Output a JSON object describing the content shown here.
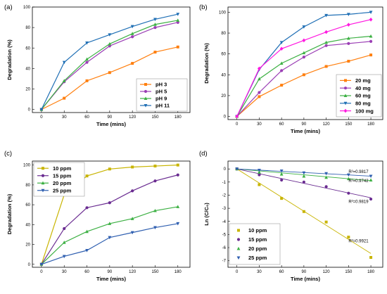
{
  "panels": [
    {
      "label": "(a)",
      "chart_data": {
        "type": "line",
        "x": [
          0,
          30,
          60,
          90,
          120,
          150,
          180
        ],
        "xlabel": "Time (mins)",
        "ylabel": "Degradation (%)",
        "xticks": [
          0,
          30,
          60,
          90,
          120,
          150,
          180
        ],
        "yticks": [
          0,
          20,
          40,
          60,
          80,
          100
        ],
        "xlim": [
          -12,
          196
        ],
        "ylim": [
          -3,
          100
        ],
        "legend": "bottom-right",
        "series": [
          {
            "name": "pH 3",
            "color": "#ff7f0e",
            "marker": "square",
            "values": [
              0,
              11,
              28,
              36,
              45,
              56,
              61
            ]
          },
          {
            "name": "pH 5",
            "color": "#9b3fb5",
            "marker": "circle",
            "values": [
              0,
              27,
              46,
              62,
              71,
              80,
              85
            ]
          },
          {
            "name": "pH 9",
            "color": "#3cb043",
            "marker": "triangle-up",
            "values": [
              0,
              28,
              49,
              64,
              74,
              83,
              87
            ]
          },
          {
            "name": "pH 11",
            "color": "#1f6fb5",
            "marker": "triangle-down",
            "values": [
              0,
              46,
              65,
              73,
              81,
              88,
              93
            ]
          }
        ]
      }
    },
    {
      "label": "(b)",
      "chart_data": {
        "type": "line",
        "x": [
          0,
          30,
          60,
          90,
          120,
          150,
          180
        ],
        "xlabel": "Time (mins)",
        "ylabel": "Degradation (%)",
        "xticks": [
          0,
          30,
          60,
          90,
          120,
          150,
          180
        ],
        "yticks": [
          0,
          20,
          40,
          60,
          80,
          100
        ],
        "xlim": [
          -12,
          196
        ],
        "ylim": [
          -3,
          105
        ],
        "legend": "bottom-right",
        "series": [
          {
            "name": "20 mg",
            "color": "#ff7f0e",
            "marker": "square",
            "values": [
              0,
              19,
              30,
              40,
              48,
              53,
              59
            ]
          },
          {
            "name": "40 mg",
            "color": "#9b3fb5",
            "marker": "circle",
            "values": [
              0,
              23,
              44,
              57,
              68,
              70,
              72
            ]
          },
          {
            "name": "60 mg",
            "color": "#3cb043",
            "marker": "triangle-up",
            "values": [
              0,
              36,
              51,
              61,
              71,
              75,
              77
            ]
          },
          {
            "name": "80 mg",
            "color": "#1f6fb5",
            "marker": "triangle-down",
            "values": [
              0,
              45,
              71,
              86,
              97,
              98,
              100
            ]
          },
          {
            "name": "100 mg",
            "color": "#ff19e0",
            "marker": "diamond",
            "values": [
              0,
              46,
              65,
              73,
              81,
              88,
              93
            ]
          }
        ]
      }
    },
    {
      "label": "(c)",
      "chart_data": {
        "type": "line",
        "x": [
          0,
          30,
          60,
          90,
          120,
          150,
          180
        ],
        "xlabel": "Time (mins)",
        "ylabel": "Degradation (%)",
        "xticks": [
          0,
          30,
          60,
          90,
          120,
          150,
          180
        ],
        "yticks": [
          0,
          20,
          40,
          60,
          80,
          100
        ],
        "xlim": [
          -12,
          196
        ],
        "ylim": [
          -3,
          104
        ],
        "legend": "top-left",
        "series": [
          {
            "name": "10 ppm",
            "color": "#c8b400",
            "marker": "square",
            "values": [
              0,
              70,
              89,
              96,
              98,
              99,
              100
            ]
          },
          {
            "name": "15 ppm",
            "color": "#6a2c91",
            "marker": "circle",
            "values": [
              0,
              36,
              57,
              62,
              74,
              84,
              90
            ]
          },
          {
            "name": "20 ppm",
            "color": "#3cb043",
            "marker": "triangle-up",
            "values": [
              0,
              22,
              33,
              41,
              46,
              54,
              58
            ]
          },
          {
            "name": "25 ppm",
            "color": "#2f5fb0",
            "marker": "triangle-down",
            "values": [
              0,
              8,
              14,
              27,
              32,
              37,
              41
            ]
          }
        ]
      }
    },
    {
      "label": "(d)",
      "chart_data": {
        "type": "scatter",
        "x": [
          0,
          30,
          60,
          90,
          120,
          150,
          180
        ],
        "xlabel": "Time (mins)",
        "ylabel": "Ln (C/C₀)",
        "xticks": [
          0,
          30,
          60,
          90,
          120,
          150,
          180
        ],
        "yticks": [
          0,
          -1,
          -2,
          -3,
          -4,
          -5,
          -6,
          -7
        ],
        "xlim": [
          -12,
          196
        ],
        "ylim": [
          -7.5,
          0.6
        ],
        "legend": "bottom-left",
        "series": [
          {
            "name": "10 ppm",
            "color": "#c8b400",
            "marker": "square",
            "values": [
              0,
              -1.2,
              -2.25,
              -3.25,
              -4.05,
              -5.2,
              -6.75
            ],
            "fit": [
              0,
              -6.45
            ]
          },
          {
            "name": "15 ppm",
            "color": "#6a2c91",
            "marker": "circle",
            "values": [
              0,
              -0.45,
              -0.85,
              -1.0,
              -1.35,
              -1.85,
              -2.3
            ],
            "fit": [
              0,
              -2.2
            ]
          },
          {
            "name": "20 ppm",
            "color": "#3cb043",
            "marker": "triangle-up",
            "values": [
              0,
              -0.25,
              -0.4,
              -0.55,
              -0.65,
              -0.75,
              -0.85
            ],
            "fit": [
              0,
              -0.9
            ]
          },
          {
            "name": "25 ppm",
            "color": "#2f5fb0",
            "marker": "triangle-down",
            "values": [
              0,
              -0.1,
              -0.15,
              -0.3,
              -0.35,
              -0.45,
              -0.55
            ],
            "fit": [
              0,
              -0.55
            ]
          }
        ],
        "annotations": [
          {
            "text": "R²=0.9817",
            "x": 150,
            "y": -0.3
          },
          {
            "text": "R²=0.9742",
            "x": 150,
            "y": -1.0
          },
          {
            "text": "R²=0.9819",
            "x": 150,
            "y": -2.6
          },
          {
            "text": "R²=0.9921",
            "x": 150,
            "y": -5.6
          }
        ]
      }
    }
  ]
}
